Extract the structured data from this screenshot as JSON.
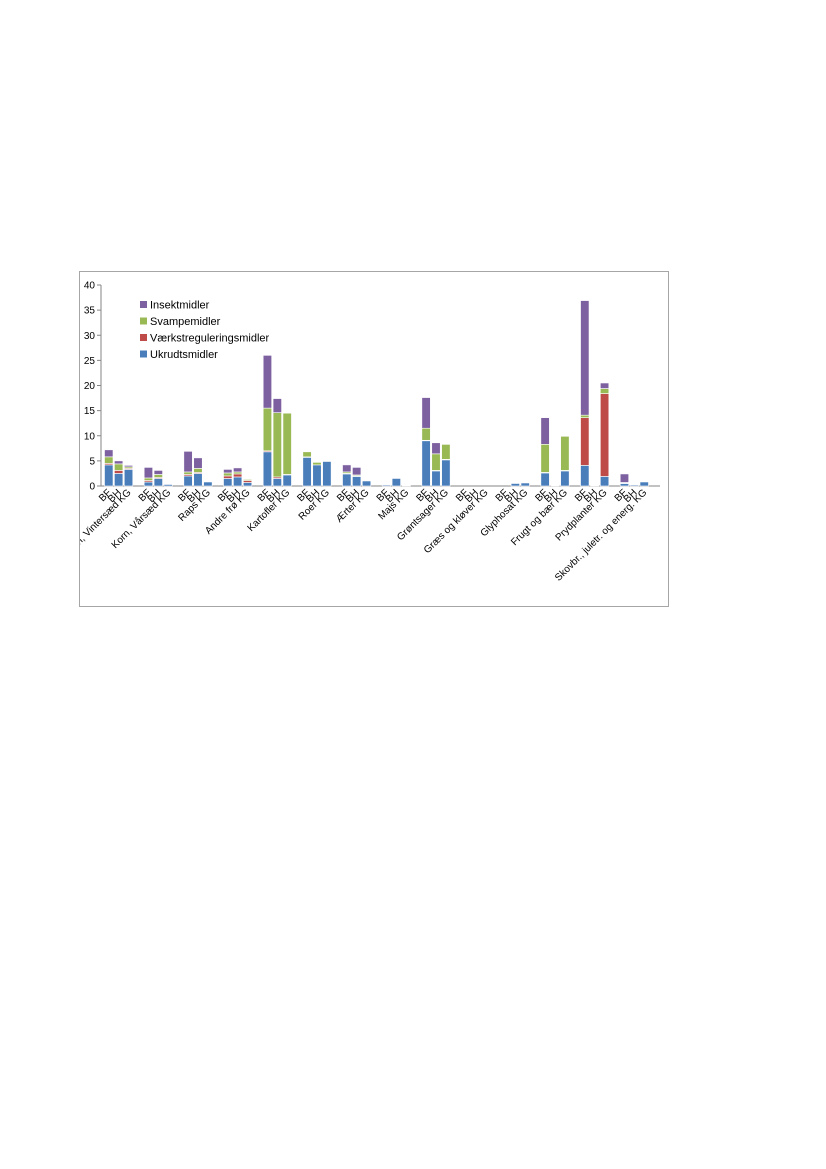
{
  "chart_data": {
    "type": "bar",
    "stacked": true,
    "title": "",
    "xlabel": "",
    "ylabel": "",
    "ylim": [
      0,
      40
    ],
    "yticks": [
      0,
      5,
      10,
      15,
      20,
      25,
      30,
      35,
      40
    ],
    "grid": false,
    "legend_position": "top-left",
    "groups": [
      {
        "label": "Korn, Vintersæd",
        "bars": [
          "BF",
          "BH",
          "KG"
        ]
      },
      {
        "label": "Korn, Vårsæd",
        "bars": [
          "BF",
          "BH",
          "KG"
        ]
      },
      {
        "label": "Raps",
        "bars": [
          "BF",
          "BH",
          "KG"
        ]
      },
      {
        "label": "Andre frø",
        "bars": [
          "BF",
          "BH",
          "KG"
        ]
      },
      {
        "label": "Kartofler",
        "bars": [
          "BF",
          "BH",
          "KG"
        ]
      },
      {
        "label": "Roer",
        "bars": [
          "BF",
          "BH",
          "KG"
        ]
      },
      {
        "label": "Ærter",
        "bars": [
          "BF",
          "BH",
          "KG"
        ]
      },
      {
        "label": "Majs",
        "bars": [
          "BF",
          "BH",
          "KG"
        ]
      },
      {
        "label": "Grøntsager",
        "bars": [
          "BF",
          "BH",
          "KG"
        ]
      },
      {
        "label": "Græs og kløver",
        "bars": [
          "BF",
          "BH",
          "KG"
        ]
      },
      {
        "label": "Glyphosat",
        "bars": [
          "BF",
          "BH",
          "KG"
        ]
      },
      {
        "label": "Frugt og bær",
        "bars": [
          "BF",
          "BH",
          "KG"
        ]
      },
      {
        "label": "Prydplanter",
        "bars": [
          "BF",
          "BH",
          "KG"
        ]
      },
      {
        "label": "Skovbr., juletr. og energ.",
        "bars": [
          "BF",
          "BH",
          "KG"
        ]
      }
    ],
    "categories": [
      "BF",
      "BH",
      "Korn, Vintersæd KG",
      "BF",
      "BH",
      "Korn, Vårsæd KG",
      "BF",
      "BH",
      "Raps KG",
      "BF",
      "BH",
      "Andre frø KG",
      "BF",
      "BH",
      "Kartofler KG",
      "BF",
      "BH",
      "Roer KG",
      "BF",
      "BH",
      "Ærter KG",
      "BF",
      "BH",
      "Majs KG",
      "BF",
      "BH",
      "Grøntsager KG",
      "BF",
      "BH",
      "Græs og kløver KG",
      "BF",
      "BH",
      "Glyphosat KG",
      "BF",
      "BH",
      "Frugt og bær KG",
      "BF",
      "BH",
      "Prydplanter KG",
      "BF",
      "BH",
      "Skovbr., juletr. og energ. KG"
    ],
    "series": [
      {
        "name": "Ukrudtsmidler",
        "color": "#4a7ebb",
        "values": [
          4.2,
          2.5,
          3.3,
          0.8,
          1.5,
          0.3,
          2.0,
          2.5,
          0.8,
          1.5,
          1.8,
          0.7,
          6.8,
          1.5,
          2.2,
          5.7,
          4.2,
          4.9,
          2.4,
          1.9,
          1.0,
          0.2,
          1.5,
          0.1,
          9.0,
          3.0,
          5.2,
          0.0,
          0.0,
          0.0,
          0.0,
          0.5,
          0.6,
          2.6,
          0.1,
          3.0,
          4.1,
          0.1,
          1.9,
          0.5,
          0.2,
          0.8
        ]
      },
      {
        "name": "Værkstreguleringsmidler",
        "color": "#be4b48",
        "values": [
          0.3,
          0.6,
          0.2,
          0.3,
          0.2,
          0.0,
          0.3,
          0.2,
          0.0,
          0.5,
          0.6,
          0.4,
          0.2,
          0.3,
          0.1,
          0.1,
          0.0,
          0.0,
          0.1,
          0.1,
          0.0,
          0.0,
          0.0,
          0.0,
          0.1,
          0.1,
          0.1,
          0.0,
          0.0,
          0.0,
          0.0,
          0.0,
          0.0,
          0.1,
          0.0,
          0.1,
          9.5,
          0.0,
          16.5,
          0.1,
          0.0,
          0.0
        ]
      },
      {
        "name": "Svampemidler",
        "color": "#98b954",
        "values": [
          1.3,
          1.3,
          0.3,
          0.5,
          0.6,
          0.0,
          0.5,
          0.8,
          0.0,
          0.6,
          0.4,
          0.2,
          8.5,
          12.8,
          12.2,
          1.0,
          0.5,
          0.1,
          0.3,
          0.2,
          0.0,
          0.0,
          0.0,
          0.0,
          2.4,
          3.3,
          3.0,
          0.0,
          0.0,
          0.0,
          0.0,
          0.0,
          0.0,
          5.6,
          0.0,
          6.8,
          0.5,
          0.0,
          1.0,
          0.1,
          0.0,
          0.0
        ]
      },
      {
        "name": "Insektmidler",
        "color": "#7d60a0",
        "values": [
          1.4,
          0.6,
          0.3,
          2.1,
          0.8,
          0.0,
          4.1,
          2.1,
          0.0,
          0.7,
          0.8,
          0.0,
          10.5,
          2.8,
          0.1,
          0.0,
          0.0,
          0.0,
          1.4,
          1.5,
          0.0,
          0.0,
          0.0,
          0.0,
          6.1,
          2.2,
          0.1,
          0.0,
          0.0,
          0.0,
          0.0,
          0.0,
          0.0,
          5.3,
          0.0,
          0.1,
          22.8,
          0.0,
          1.1,
          1.7,
          0.0,
          0.0
        ]
      }
    ]
  }
}
